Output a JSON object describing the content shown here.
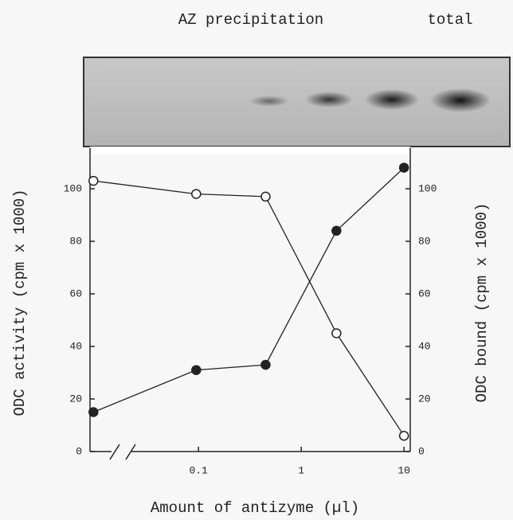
{
  "chart_data": {
    "type": "line",
    "header_labels": [
      "AZ precipitation",
      "total"
    ],
    "xlabel": "Amount of antizyme (µl)",
    "ylabel": "ODC activity (cpm x 1000)",
    "y2label": "ODC bound (cpm x 1000)",
    "xscale": "log",
    "xlim": [
      0.0088,
      11.5
    ],
    "xticks": [
      0.1,
      1,
      10
    ],
    "ylim": [
      0,
      110
    ],
    "yticks": [
      0,
      20,
      40,
      60,
      80,
      100
    ],
    "y2lim": [
      0,
      110
    ],
    "y2ticks": [
      0,
      20,
      40,
      60,
      80,
      100
    ],
    "x": [
      0.0095,
      0.095,
      0.45,
      2.2,
      10
    ],
    "series": [
      {
        "color": "#222222",
        "marker": "open",
        "values": [
          103,
          98,
          97,
          45,
          6
        ]
      },
      {
        "color": "#222222",
        "marker": "filled",
        "axis": "y2",
        "values": [
          15,
          31,
          33,
          84,
          108
        ]
      }
    ]
  }
}
